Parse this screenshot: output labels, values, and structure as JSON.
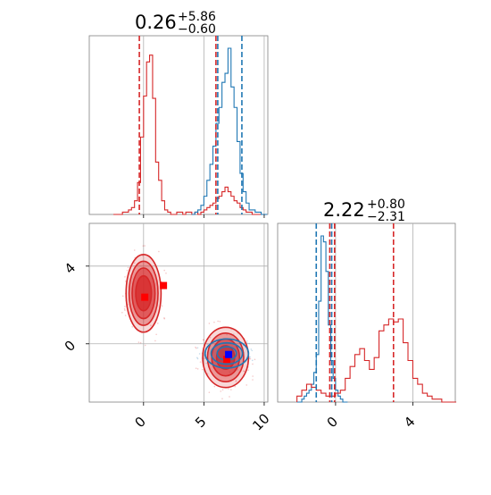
{
  "chart_data": {
    "type": "corner",
    "panels": [
      {
        "id": "hist-param1",
        "type": "histogram",
        "title": {
          "value": "0.26",
          "sup": "+5.86",
          "sub": "−0.60"
        },
        "xlim": [
          -4.5,
          10.3
        ],
        "xticks": [
          0,
          5,
          10
        ],
        "grid": true,
        "series": [
          {
            "name": "",
            "color": "#d62728",
            "bin_start": -2.5,
            "bin_width": 0.25,
            "counts": [
              0,
              0,
              0,
              1,
              1,
              2,
              3,
              6,
              14,
              34,
              52,
              67,
              70,
              51,
              23,
              15,
              6,
              2,
              1,
              0,
              0,
              1,
              1,
              0,
              1,
              1,
              0,
              1,
              0,
              1,
              2,
              3,
              4,
              5,
              7,
              8,
              10,
              12,
              10,
              8,
              6,
              5,
              3,
              2,
              1,
              1,
              0,
              0,
              0,
              0,
              0
            ]
          },
          {
            "name": "",
            "color": "#1f77b4",
            "bin_start": 4.0,
            "bin_width": 0.25,
            "counts": [
              0,
              1,
              2,
              4,
              8,
              15,
              22,
              30,
              40,
              47,
              58,
              62,
              73,
              56,
              47,
              32,
              18,
              10,
              5,
              2,
              2,
              1,
              1,
              0,
              0
            ]
          }
        ],
        "vlines": [
          {
            "x": -0.35,
            "color": "#d62728"
          },
          {
            "x": 6.0,
            "color": "#d62728"
          },
          {
            "x": 6.15,
            "color": "#1f77b4"
          },
          {
            "x": 8.15,
            "color": "#1f77b4"
          }
        ]
      },
      {
        "id": "hist-param2",
        "type": "histogram",
        "title": {
          "value": "2.22",
          "sup": "+0.80",
          "sub": "−2.31"
        },
        "xlim": [
          -3.0,
          6.2
        ],
        "xticks": [
          0,
          4
        ],
        "grid": true,
        "series": [
          {
            "name": "",
            "color": "#1f77b4",
            "bin_start": -2.0,
            "bin_width": 0.125,
            "counts": [
              0,
              0,
              1,
              2,
              3,
              4,
              6,
              10,
              16,
              34,
              56,
              54,
              44,
              26,
              14,
              8,
              4,
              2,
              1,
              0,
              0
            ]
          },
          {
            "name": "",
            "color": "#d62728",
            "bin_start": -2.0,
            "bin_width": 0.25,
            "counts": [
              2,
              4,
              6,
              5,
              4,
              3,
              2,
              2,
              3,
              4,
              8,
              12,
              16,
              18,
              14,
              11,
              15,
              24,
              26,
              28,
              27,
              28,
              20,
              14,
              8,
              6,
              3,
              2,
              1,
              1,
              0,
              0,
              0
            ]
          }
        ],
        "vlines": [
          {
            "x": -0.2,
            "color": "#1f77b4"
          },
          {
            "x": -0.3,
            "color": "#d62728"
          },
          {
            "x": -0.05,
            "color": "#d62728"
          },
          {
            "x": 3.0,
            "color": "#d62728"
          },
          {
            "x": -1.0,
            "color": "#1f77b4"
          }
        ]
      },
      {
        "id": "scatter-2d",
        "type": "contour",
        "xlim": [
          -4.5,
          10.3
        ],
        "ylim": [
          -3.0,
          6.2
        ],
        "xticks": [
          0,
          5,
          10
        ],
        "yticks": [
          0,
          4
        ],
        "grid": true,
        "blobs": [
          {
            "color": "#d62728",
            "cx": 0.0,
            "cy": 2.6,
            "rx_levels": [
              1.45,
              1.2,
              0.95,
              0.65
            ],
            "ry_levels": [
              2.0,
              1.65,
              1.3,
              0.9
            ]
          },
          {
            "color": "#d62728",
            "cx": 6.8,
            "cy": -0.7,
            "rx_levels": [
              1.9,
              1.5,
              1.15,
              0.75
            ],
            "ry_levels": [
              1.55,
              1.25,
              0.95,
              0.6
            ]
          },
          {
            "color": "#1f77b4",
            "cx": 6.9,
            "cy": -0.5,
            "rx_levels": [
              1.8,
              1.3,
              0.8
            ],
            "ry_levels": [
              0.75,
              0.55,
              0.35
            ]
          }
        ],
        "markers": [
          {
            "x": 0.1,
            "y": 2.4,
            "color": "#ff0000"
          },
          {
            "x": 1.65,
            "y": 3.0,
            "color": "#ff0000"
          },
          {
            "x": 6.9,
            "y": -0.8,
            "color": "#ff0000"
          },
          {
            "x": 7.05,
            "y": -0.55,
            "color": "#0000ff"
          }
        ]
      }
    ]
  }
}
